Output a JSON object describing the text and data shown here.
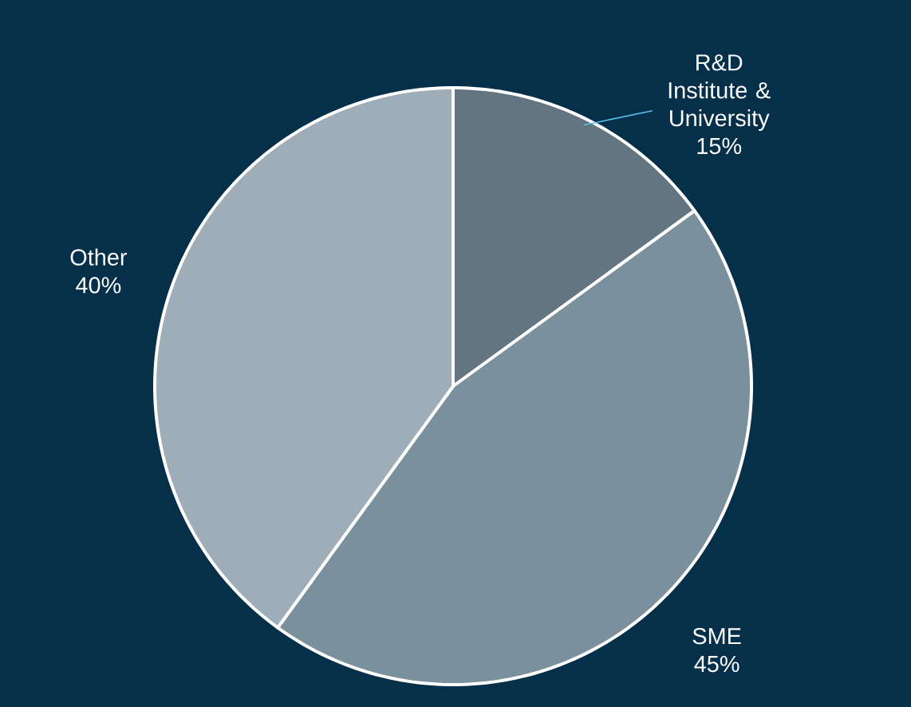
{
  "chart_data": {
    "type": "pie",
    "categories": [
      "R&D Institute & University",
      "SME",
      "Other"
    ],
    "values": [
      15,
      45,
      40
    ],
    "value_labels": [
      "15%",
      "45%",
      "40%"
    ],
    "colors": [
      "#627580",
      "#7a909c",
      "#9eadb8"
    ]
  }
}
